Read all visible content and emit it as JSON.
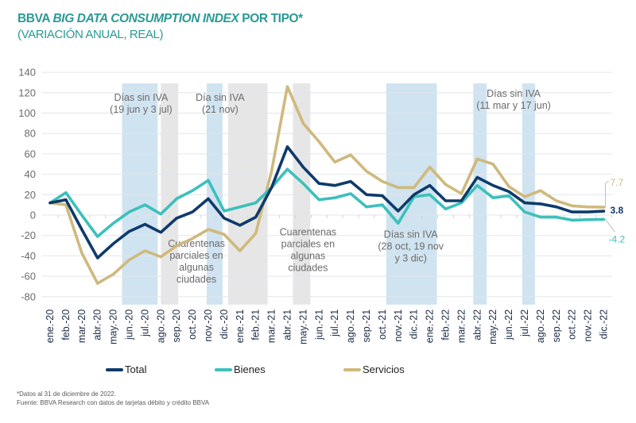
{
  "header": {
    "title_prefix": "BBVA ",
    "title_italic": "BIG DATA CONSUMPTION INDEX",
    "title_suffix": " POR TIPO*",
    "subtitle": "(VARIACIÓN ANUAL, REAL)"
  },
  "footnotes": {
    "line1": "*Datos al 31 de diciembre de 2022.",
    "line2": "Fuente: BBVA Research con datos de tarjetas débito y crédito BBVA"
  },
  "chart_data": {
    "type": "line",
    "title": "BBVA BIG DATA CONSUMPTION INDEX POR TIPO*",
    "subtitle": "(VARIACIÓN ANUAL, REAL)",
    "xlabel": "",
    "ylabel": "",
    "ylim": [
      -80,
      140
    ],
    "yticks": [
      140,
      120,
      100,
      80,
      60,
      40,
      20,
      0,
      -20,
      -40,
      -60,
      -80
    ],
    "grid": true,
    "legend_position": "bottom",
    "categories": [
      "ene.-20",
      "feb.-20",
      "mar.-20",
      "abr.-20",
      "may.-20",
      "jun.-20",
      "jul.-20",
      "ago.-20",
      "sep.-20",
      "oct.-20",
      "nov.-20",
      "dic.-20",
      "ene.-21",
      "feb.-21",
      "mar.-21",
      "abr.-21",
      "may.-21",
      "jun.-21",
      "jul.-21",
      "ago.-21",
      "sep.-21",
      "oct.-21",
      "nov.-21",
      "dic.-21",
      "ene.-22",
      "feb.-22",
      "mar.-22",
      "abr.-22",
      "may.-22",
      "jun.-22",
      "jul.-22",
      "ago.-22",
      "sep.-22",
      "oct.-22",
      "nov.-22",
      "dic.-22"
    ],
    "series": [
      {
        "name": "Total",
        "color": "#0f3a6b",
        "values": [
          12,
          15,
          -14,
          -42,
          -28,
          -16,
          -9,
          -17,
          -3,
          3,
          16,
          -3,
          -10,
          -2,
          27,
          67,
          47,
          31,
          29,
          33,
          20,
          19,
          4,
          20,
          29,
          14,
          14,
          37,
          29,
          23,
          12,
          11,
          8,
          3,
          3,
          3.8
        ],
        "end_label": "3.8"
      },
      {
        "name": "Bienes",
        "color": "#3cc0bb",
        "values": [
          12,
          22,
          0,
          -21,
          -8,
          3,
          10,
          1,
          16,
          24,
          34,
          4,
          8,
          12,
          27,
          45,
          31,
          15,
          17,
          21,
          8,
          10,
          -8,
          18,
          20,
          6,
          12,
          29,
          17,
          19,
          3,
          -2,
          -2,
          -5,
          -4.5,
          -4.2
        ],
        "end_label": "-4.2"
      },
      {
        "name": "Servicios",
        "color": "#cfb97c",
        "values": [
          12,
          10,
          -37,
          -67,
          -58,
          -44,
          -35,
          -41,
          -30,
          -23,
          -14,
          -19,
          -35,
          -18,
          43,
          126,
          90,
          72,
          52,
          59,
          43,
          33,
          27,
          27,
          47,
          30,
          21,
          55,
          50,
          28,
          18,
          24,
          14,
          9,
          8,
          7.7
        ],
        "end_label": "7.7"
      }
    ],
    "shaded_periods": [
      {
        "kind": "iva",
        "from": 4.55,
        "to": 6.8
      },
      {
        "kind": "cuarentena",
        "from": 7.0,
        "to": 8.1
      },
      {
        "kind": "iva",
        "from": 9.9,
        "to": 10.9
      },
      {
        "kind": "cuarentena",
        "from": 11.25,
        "to": 13.75
      },
      {
        "kind": "cuarentena",
        "from": 15.35,
        "to": 16.45
      },
      {
        "kind": "iva",
        "from": 21.25,
        "to": 24.45
      },
      {
        "kind": "iva",
        "from": 26.75,
        "to": 27.6
      },
      {
        "kind": "iva",
        "from": 29.85,
        "to": 30.65
      }
    ],
    "annotations": [
      {
        "lines": [
          "Días sin IVA",
          "(19 jun y 3 jul)"
        ],
        "month": 5.75,
        "value": 112
      },
      {
        "lines": [
          "Día sin IVA",
          "(21 nov)"
        ],
        "month": 10.75,
        "value": 112
      },
      {
        "lines": [
          "Cuarentenas",
          "parciales en",
          "algunas",
          "ciudades"
        ],
        "month": 9.25,
        "value": -31
      },
      {
        "lines": [
          "Cuarentenas",
          "parciales en",
          "algunas",
          "ciudades"
        ],
        "month": 16.3,
        "value": -20
      },
      {
        "lines": [
          "Días sin IVA",
          "(28 oct, 19 nov",
          "y 3 dic)"
        ],
        "month": 22.8,
        "value": -22
      },
      {
        "lines": [
          "Días sin IVA",
          "(11 mar y 17 jun)"
        ],
        "month": 29.3,
        "value": 116
      }
    ]
  },
  "legend": {
    "items": [
      {
        "label": "Total",
        "color": "#0f3a6b"
      },
      {
        "label": "Bienes",
        "color": "#3cc0bb"
      },
      {
        "label": "Servicios",
        "color": "#cfb97c"
      }
    ]
  },
  "colors": {
    "iva_band": "#cfe3f0",
    "cuarentena_band": "#e6e6e6",
    "gridline": "#e2e6ec",
    "accent": "#2a9a96"
  }
}
